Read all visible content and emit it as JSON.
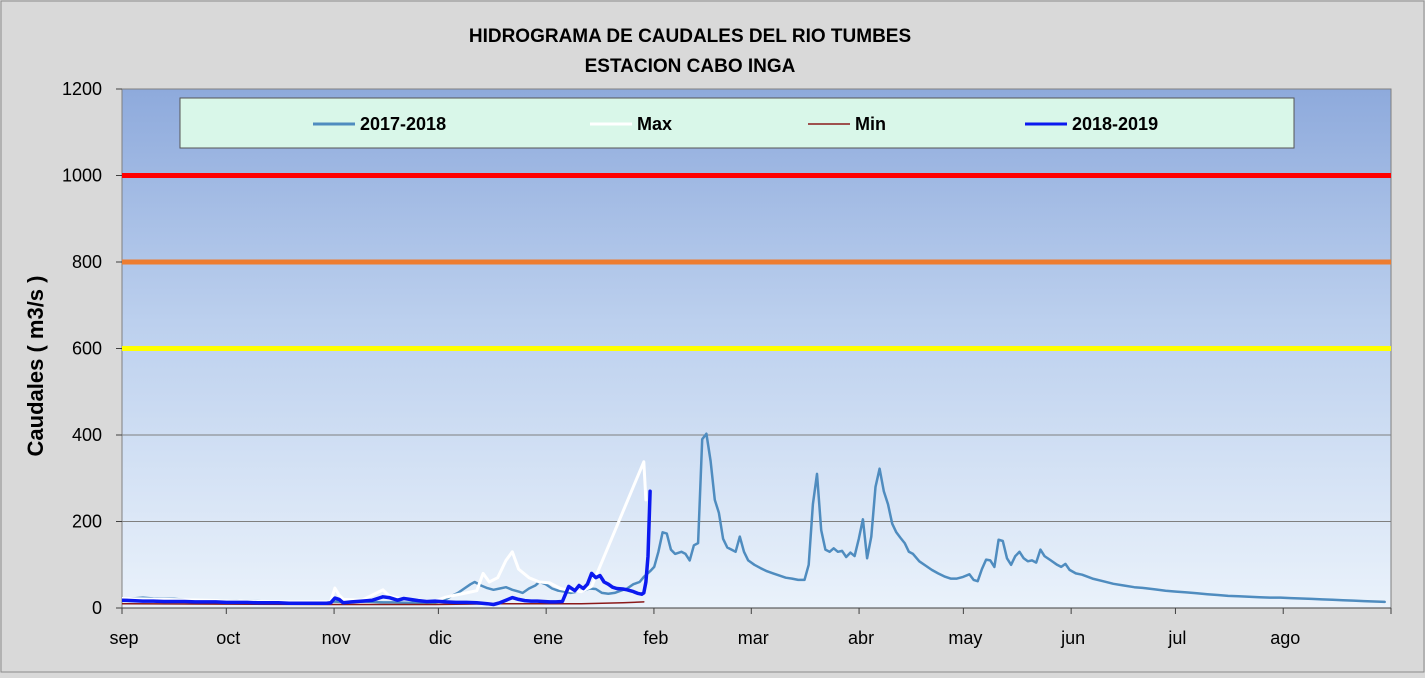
{
  "chart_data": {
    "type": "line",
    "title": "HIDROGRAMA DE CAUDALES DEL RIO  TUMBES",
    "subtitle": "ESTACION  CABO INGA",
    "xlabel": "",
    "ylabel": "Caudales ( m3/s )",
    "ylim": [
      0,
      1200
    ],
    "yticks": [
      "0",
      "200",
      "400",
      "600",
      "800",
      "1000",
      "1200"
    ],
    "grid": "horizontal",
    "legend_position": "top",
    "x_ticks": [
      "sep",
      "oct",
      "nov",
      "dic",
      "ene",
      "feb",
      "mar",
      "abr",
      "may",
      "jun",
      "jul",
      "ago"
    ],
    "x_unit": "day of hydrological year (starting 1 sep)",
    "thresholds": [
      {
        "value": 1000,
        "color": "#ff0000"
      },
      {
        "value": 800,
        "color": "#ed7d31"
      },
      {
        "value": 600,
        "color": "#ffff00"
      }
    ],
    "series": [
      {
        "name": "2017-2018",
        "color": "#4f8cbf",
        "points": [
          [
            0,
            20
          ],
          [
            5,
            22
          ],
          [
            10,
            24
          ],
          [
            15,
            22
          ],
          [
            20,
            21
          ],
          [
            25,
            21
          ],
          [
            30,
            19
          ],
          [
            35,
            18
          ],
          [
            40,
            18
          ],
          [
            45,
            18
          ],
          [
            50,
            17
          ],
          [
            55,
            17
          ],
          [
            60,
            16
          ],
          [
            65,
            16
          ],
          [
            70,
            15
          ],
          [
            75,
            14
          ],
          [
            80,
            13
          ],
          [
            85,
            12
          ],
          [
            90,
            13
          ],
          [
            95,
            14
          ],
          [
            100,
            15
          ],
          [
            105,
            14
          ],
          [
            110,
            14
          ],
          [
            115,
            15
          ],
          [
            120,
            14
          ],
          [
            125,
            13
          ],
          [
            130,
            13
          ],
          [
            135,
            12
          ],
          [
            140,
            12
          ],
          [
            145,
            11
          ],
          [
            150,
            12
          ],
          [
            152,
            15
          ],
          [
            155,
            20
          ],
          [
            158,
            28
          ],
          [
            161,
            35
          ],
          [
            164,
            45
          ],
          [
            167,
            55
          ],
          [
            169,
            60
          ],
          [
            172,
            52
          ],
          [
            175,
            46
          ],
          [
            178,
            42
          ],
          [
            181,
            45
          ],
          [
            184,
            48
          ],
          [
            187,
            42
          ],
          [
            190,
            38
          ],
          [
            192,
            35
          ],
          [
            195,
            45
          ],
          [
            198,
            52
          ],
          [
            200,
            60
          ],
          [
            203,
            55
          ],
          [
            206,
            45
          ],
          [
            209,
            40
          ],
          [
            212,
            38
          ],
          [
            215,
            35
          ],
          [
            218,
            38
          ],
          [
            221,
            40
          ],
          [
            224,
            45
          ],
          [
            227,
            44
          ],
          [
            230,
            35
          ],
          [
            233,
            33
          ],
          [
            236,
            35
          ],
          [
            239,
            40
          ],
          [
            242,
            45
          ],
          [
            245,
            55
          ],
          [
            248,
            60
          ],
          [
            250,
            72
          ],
          [
            253,
            85
          ],
          [
            255,
            95
          ],
          [
            257,
            130
          ],
          [
            259,
            175
          ],
          [
            261,
            172
          ],
          [
            263,
            135
          ],
          [
            265,
            125
          ],
          [
            268,
            130
          ],
          [
            270,
            125
          ],
          [
            272,
            110
          ],
          [
            274,
            145
          ],
          [
            276,
            150
          ],
          [
            278,
            390
          ],
          [
            280,
            403
          ],
          [
            282,
            340
          ],
          [
            284,
            250
          ],
          [
            286,
            220
          ],
          [
            288,
            160
          ],
          [
            290,
            140
          ],
          [
            292,
            135
          ],
          [
            294,
            130
          ],
          [
            296,
            165
          ],
          [
            298,
            130
          ],
          [
            300,
            110
          ],
          [
            303,
            100
          ],
          [
            306,
            92
          ],
          [
            309,
            85
          ],
          [
            312,
            80
          ],
          [
            315,
            75
          ],
          [
            318,
            70
          ],
          [
            321,
            68
          ],
          [
            324,
            65
          ],
          [
            327,
            65
          ],
          [
            329,
            100
          ],
          [
            331,
            240
          ],
          [
            333,
            310
          ],
          [
            335,
            180
          ],
          [
            337,
            135
          ],
          [
            339,
            130
          ],
          [
            341,
            138
          ],
          [
            343,
            130
          ],
          [
            345,
            132
          ],
          [
            347,
            118
          ],
          [
            349,
            128
          ],
          [
            351,
            120
          ],
          [
            353,
            160
          ],
          [
            355,
            205
          ],
          [
            357,
            115
          ],
          [
            359,
            165
          ],
          [
            361,
            280
          ],
          [
            363,
            322
          ],
          [
            365,
            270
          ],
          [
            367,
            240
          ],
          [
            369,
            195
          ],
          [
            371,
            175
          ],
          [
            373,
            162
          ],
          [
            375,
            150
          ],
          [
            377,
            130
          ],
          [
            379,
            125
          ],
          [
            382,
            108
          ],
          [
            385,
            98
          ],
          [
            388,
            88
          ],
          [
            391,
            80
          ],
          [
            394,
            73
          ],
          [
            397,
            68
          ],
          [
            400,
            68
          ],
          [
            403,
            72
          ],
          [
            406,
            78
          ],
          [
            408,
            65
          ],
          [
            410,
            62
          ],
          [
            412,
            90
          ],
          [
            414,
            112
          ],
          [
            416,
            110
          ],
          [
            418,
            95
          ],
          [
            420,
            158
          ],
          [
            422,
            155
          ],
          [
            424,
            115
          ],
          [
            426,
            100
          ],
          [
            428,
            120
          ],
          [
            430,
            130
          ],
          [
            432,
            115
          ],
          [
            434,
            108
          ],
          [
            436,
            110
          ],
          [
            438,
            105
          ],
          [
            440,
            135
          ],
          [
            442,
            120
          ],
          [
            445,
            110
          ],
          [
            448,
            100
          ],
          [
            450,
            95
          ],
          [
            452,
            102
          ],
          [
            454,
            88
          ],
          [
            457,
            80
          ],
          [
            460,
            77
          ],
          [
            465,
            68
          ],
          [
            470,
            62
          ],
          [
            475,
            56
          ],
          [
            480,
            52
          ],
          [
            485,
            48
          ],
          [
            490,
            46
          ],
          [
            495,
            43
          ],
          [
            500,
            40
          ],
          [
            505,
            38
          ],
          [
            510,
            36
          ],
          [
            515,
            34
          ],
          [
            520,
            32
          ],
          [
            525,
            30
          ],
          [
            530,
            28
          ],
          [
            535,
            27
          ],
          [
            540,
            26
          ],
          [
            545,
            25
          ],
          [
            550,
            24
          ],
          [
            555,
            24
          ],
          [
            560,
            23
          ],
          [
            565,
            22
          ],
          [
            570,
            21
          ],
          [
            575,
            20
          ],
          [
            580,
            19
          ],
          [
            585,
            18
          ],
          [
            590,
            17
          ],
          [
            595,
            16
          ],
          [
            600,
            15
          ],
          [
            605,
            14
          ]
        ]
      },
      {
        "name": "Max",
        "color": "#ffffff",
        "points": [
          [
            0,
            22
          ],
          [
            20,
            20
          ],
          [
            40,
            18
          ],
          [
            60,
            16
          ],
          [
            80,
            14
          ],
          [
            100,
            15
          ],
          [
            102,
            46
          ],
          [
            104,
            30
          ],
          [
            106,
            20
          ],
          [
            115,
            18
          ],
          [
            120,
            30
          ],
          [
            125,
            42
          ],
          [
            128,
            28
          ],
          [
            135,
            20
          ],
          [
            150,
            16
          ],
          [
            155,
            25
          ],
          [
            160,
            30
          ],
          [
            165,
            35
          ],
          [
            170,
            40
          ],
          [
            173,
            80
          ],
          [
            176,
            60
          ],
          [
            180,
            70
          ],
          [
            184,
            110
          ],
          [
            187,
            130
          ],
          [
            190,
            90
          ],
          [
            195,
            70
          ],
          [
            200,
            60
          ],
          [
            205,
            58
          ],
          [
            210,
            45
          ],
          [
            215,
            40
          ],
          [
            220,
            38
          ],
          [
            225,
            50
          ],
          [
            250,
            338
          ],
          [
            251,
            250
          ]
        ]
      },
      {
        "name": "Min",
        "color": "#8b1a1a",
        "points": [
          [
            0,
            10
          ],
          [
            50,
            9
          ],
          [
            100,
            8
          ],
          [
            150,
            8
          ],
          [
            180,
            10
          ],
          [
            220,
            10
          ],
          [
            240,
            12
          ],
          [
            250,
            14
          ]
        ]
      },
      {
        "name": "2018-2019",
        "color": "#0b19f0",
        "points": [
          [
            0,
            18
          ],
          [
            5,
            17
          ],
          [
            10,
            16
          ],
          [
            15,
            16
          ],
          [
            20,
            15
          ],
          [
            25,
            15
          ],
          [
            30,
            15
          ],
          [
            35,
            14
          ],
          [
            40,
            14
          ],
          [
            45,
            14
          ],
          [
            50,
            13
          ],
          [
            55,
            13
          ],
          [
            60,
            13
          ],
          [
            65,
            12
          ],
          [
            70,
            12
          ],
          [
            75,
            12
          ],
          [
            80,
            11
          ],
          [
            85,
            11
          ],
          [
            90,
            11
          ],
          [
            95,
            11
          ],
          [
            98,
            11
          ],
          [
            100,
            12
          ],
          [
            102,
            23
          ],
          [
            104,
            20
          ],
          [
            106,
            12
          ],
          [
            110,
            14
          ],
          [
            115,
            16
          ],
          [
            120,
            18
          ],
          [
            125,
            26
          ],
          [
            128,
            24
          ],
          [
            132,
            18
          ],
          [
            135,
            22
          ],
          [
            138,
            20
          ],
          [
            142,
            17
          ],
          [
            146,
            15
          ],
          [
            150,
            16
          ],
          [
            155,
            14
          ],
          [
            160,
            13
          ],
          [
            165,
            13
          ],
          [
            170,
            12
          ],
          [
            175,
            10
          ],
          [
            178,
            8
          ],
          [
            181,
            12
          ],
          [
            184,
            18
          ],
          [
            187,
            24
          ],
          [
            190,
            20
          ],
          [
            193,
            17
          ],
          [
            196,
            16
          ],
          [
            199,
            16
          ],
          [
            202,
            15
          ],
          [
            205,
            14
          ],
          [
            208,
            14
          ],
          [
            211,
            15
          ],
          [
            214,
            50
          ],
          [
            217,
            40
          ],
          [
            219,
            52
          ],
          [
            221,
            45
          ],
          [
            223,
            55
          ],
          [
            225,
            80
          ],
          [
            227,
            70
          ],
          [
            229,
            75
          ],
          [
            231,
            60
          ],
          [
            233,
            55
          ],
          [
            235,
            48
          ],
          [
            237,
            45
          ],
          [
            240,
            44
          ],
          [
            242,
            42
          ],
          [
            245,
            38
          ],
          [
            247,
            34
          ],
          [
            249,
            32
          ],
          [
            250,
            35
          ],
          [
            251,
            60
          ],
          [
            252,
            120
          ],
          [
            253,
            270
          ]
        ]
      }
    ]
  }
}
